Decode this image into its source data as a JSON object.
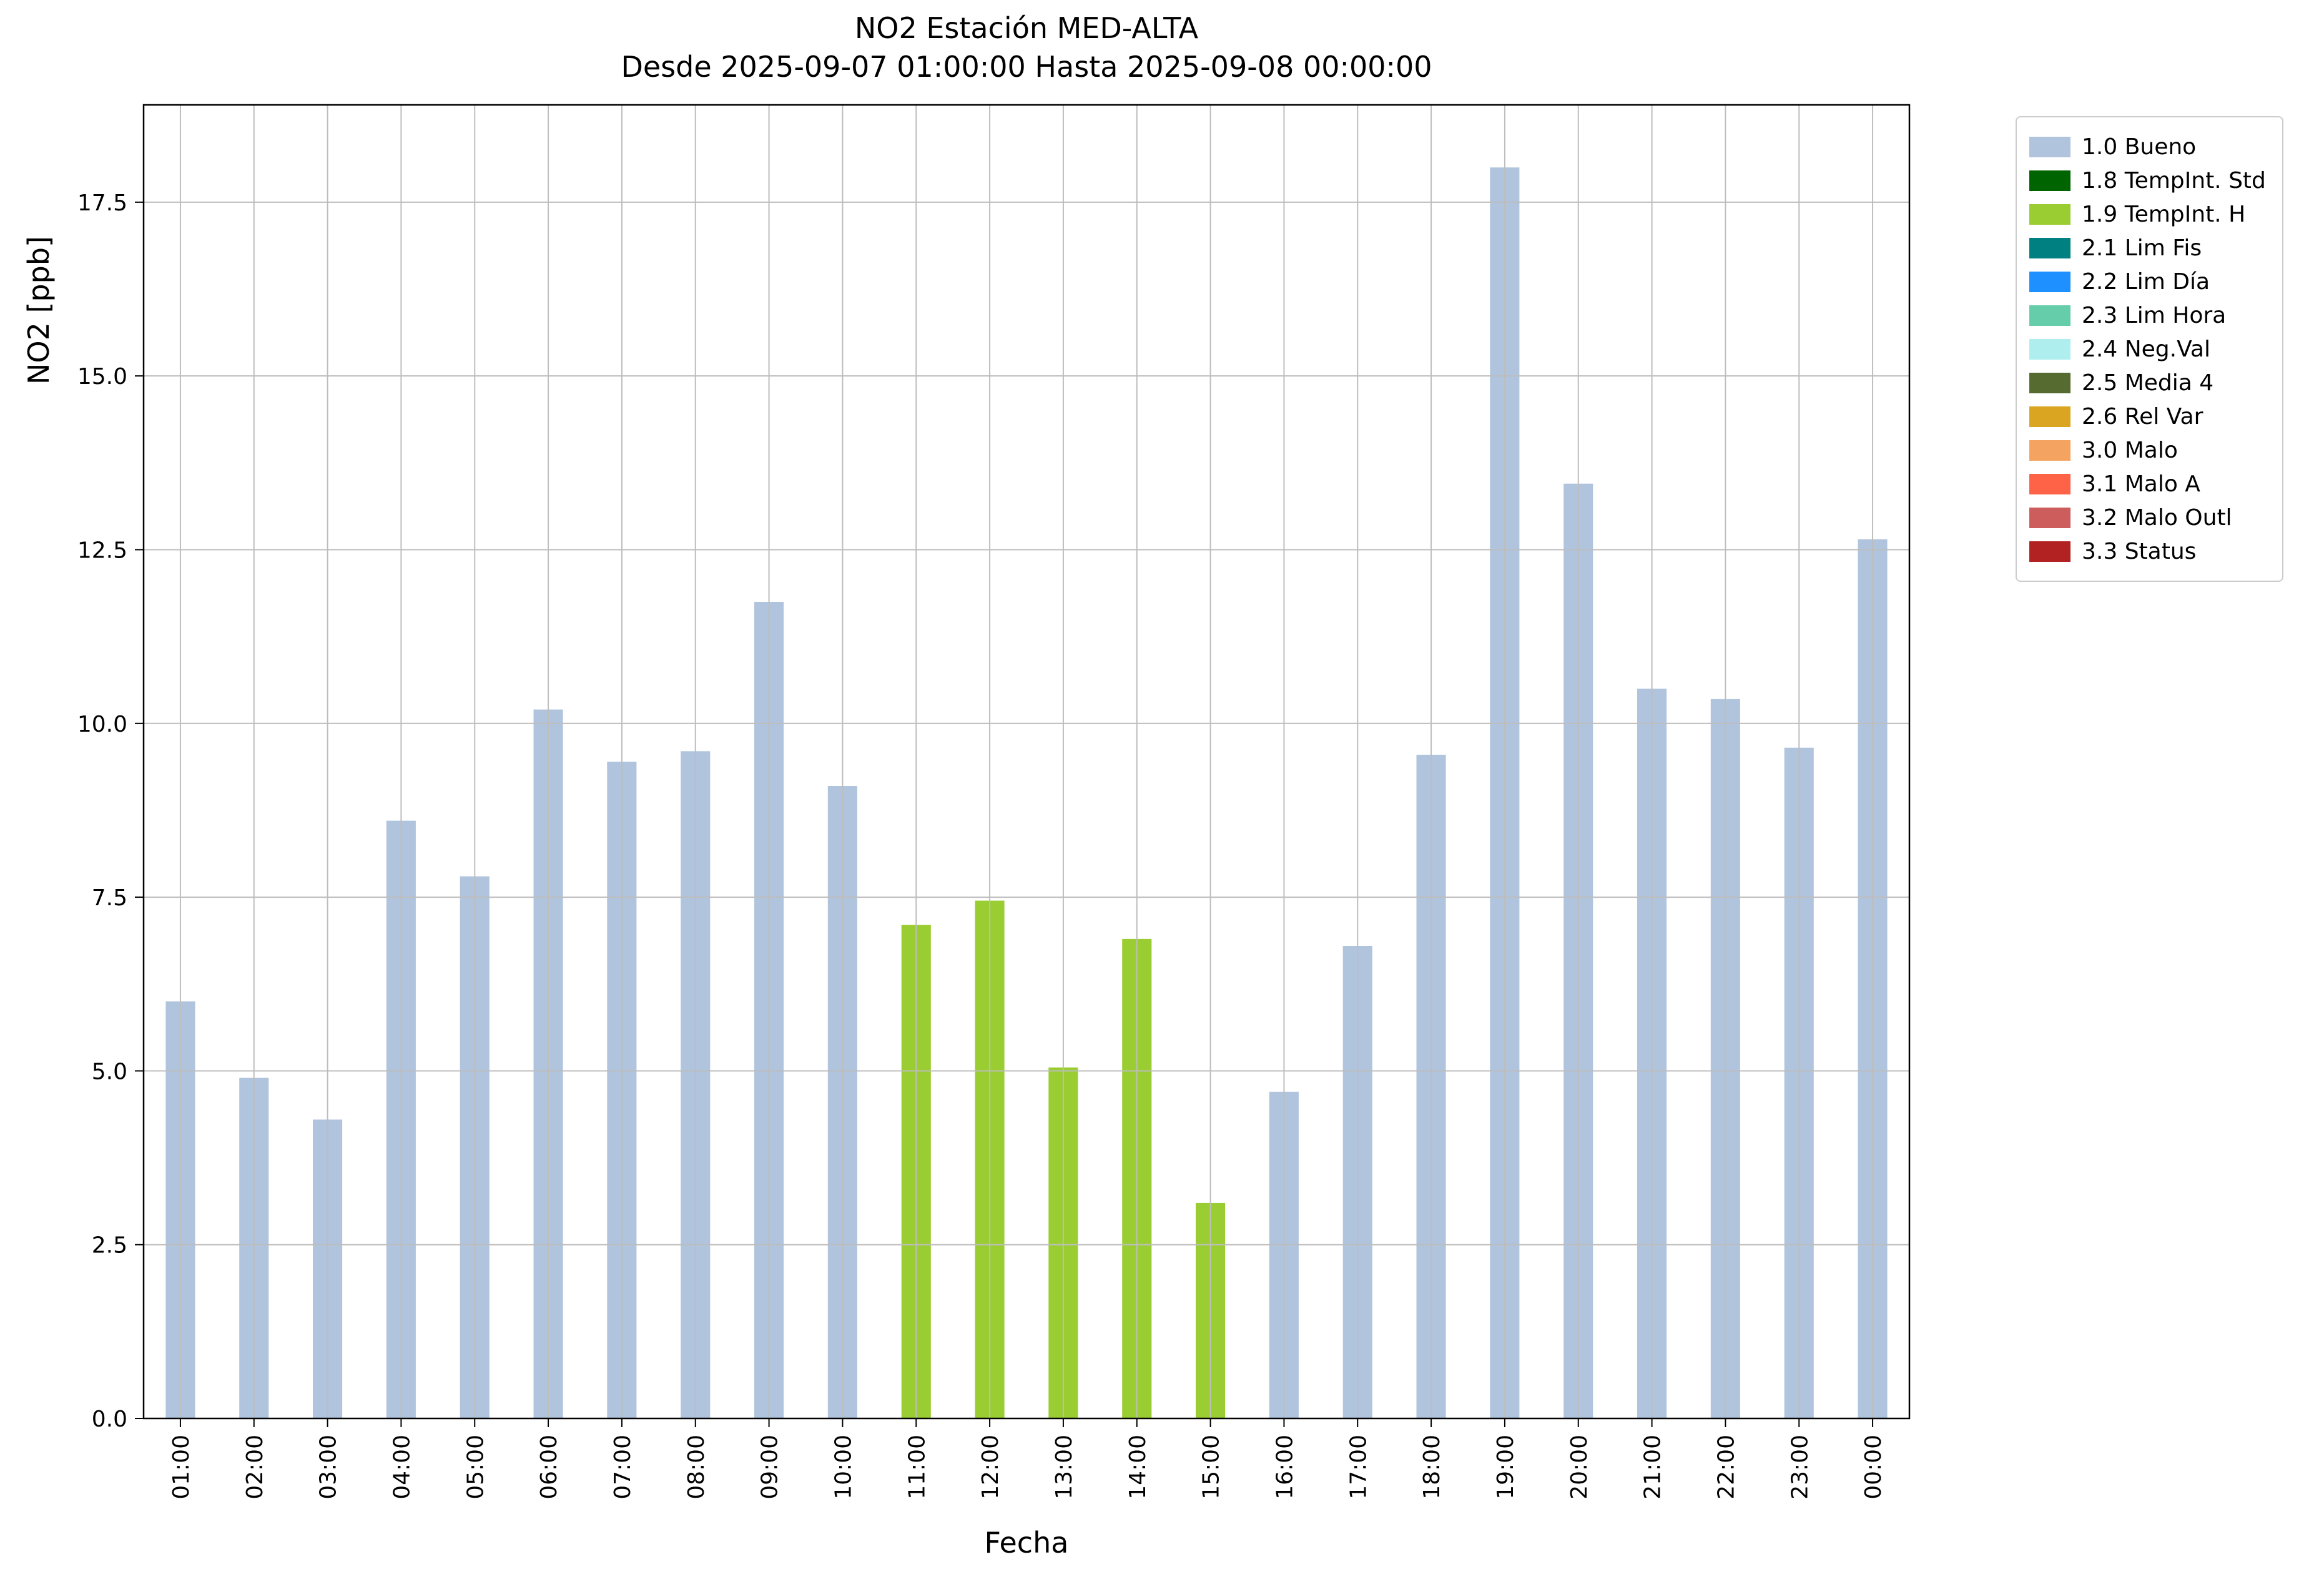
{
  "chart_data": {
    "type": "bar",
    "title": "NO2 Estación MED-ALTA",
    "subtitle": "Desde 2025-09-07 01:00:00 Hasta 2025-09-08 00:00:00",
    "xlabel": "Fecha",
    "ylabel": "NO2 [ppb]",
    "ylim": [
      0,
      18.9
    ],
    "yticks": [
      "0.0",
      "2.5",
      "5.0",
      "7.5",
      "10.0",
      "12.5",
      "15.0",
      "17.5"
    ],
    "grid": true,
    "categories": [
      "01:00",
      "02:00",
      "03:00",
      "04:00",
      "05:00",
      "06:00",
      "07:00",
      "08:00",
      "09:00",
      "10:00",
      "11:00",
      "12:00",
      "13:00",
      "14:00",
      "15:00",
      "16:00",
      "17:00",
      "18:00",
      "19:00",
      "20:00",
      "21:00",
      "22:00",
      "23:00",
      "00:00"
    ],
    "values": [
      6.0,
      4.9,
      4.3,
      8.6,
      7.8,
      10.2,
      9.45,
      9.6,
      11.75,
      9.1,
      7.1,
      7.45,
      5.05,
      6.9,
      3.1,
      4.7,
      6.8,
      9.55,
      18.0,
      13.45,
      10.5,
      10.35,
      9.65,
      12.65
    ],
    "bar_status": [
      "1.0 Bueno",
      "1.0 Bueno",
      "1.0 Bueno",
      "1.0 Bueno",
      "1.0 Bueno",
      "1.0 Bueno",
      "1.0 Bueno",
      "1.0 Bueno",
      "1.0 Bueno",
      "1.0 Bueno",
      "1.9 TempInt. H",
      "1.9 TempInt. H",
      "1.9 TempInt. H",
      "1.9 TempInt. H",
      "1.9 TempInt. H",
      "1.0 Bueno",
      "1.0 Bueno",
      "1.0 Bueno",
      "1.0 Bueno",
      "1.0 Bueno",
      "1.0 Bueno",
      "1.0 Bueno",
      "1.0 Bueno",
      "1.0 Bueno"
    ],
    "legend": {
      "position": "outside-upper-right",
      "items": [
        {
          "label": "1.0 Bueno",
          "color": "#b0c4de"
        },
        {
          "label": "1.8 TempInt. Std",
          "color": "#006400"
        },
        {
          "label": "1.9 TempInt. H",
          "color": "#9acd32"
        },
        {
          "label": "2.1 Lim Fis",
          "color": "#008080"
        },
        {
          "label": "2.2 Lim Día",
          "color": "#1e90ff"
        },
        {
          "label": "2.3 Lim Hora",
          "color": "#66cdaa"
        },
        {
          "label": "2.4 Neg.Val",
          "color": "#afeeee"
        },
        {
          "label": "2.5 Media 4",
          "color": "#556b2f"
        },
        {
          "label": "2.6 Rel Var",
          "color": "#daa520"
        },
        {
          "label": "3.0 Malo",
          "color": "#f4a460"
        },
        {
          "label": "3.1 Malo A",
          "color": "#ff6347"
        },
        {
          "label": "3.2 Malo Outl",
          "color": "#cd5c5c"
        },
        {
          "label": "3.3 Status",
          "color": "#b22222"
        }
      ]
    },
    "colors": {
      "background": "#ffffff",
      "grid": "#bdbdbd",
      "axis": "#000000",
      "default_bar": "#b0c4de",
      "highlight_bar": "#9acd32"
    }
  }
}
